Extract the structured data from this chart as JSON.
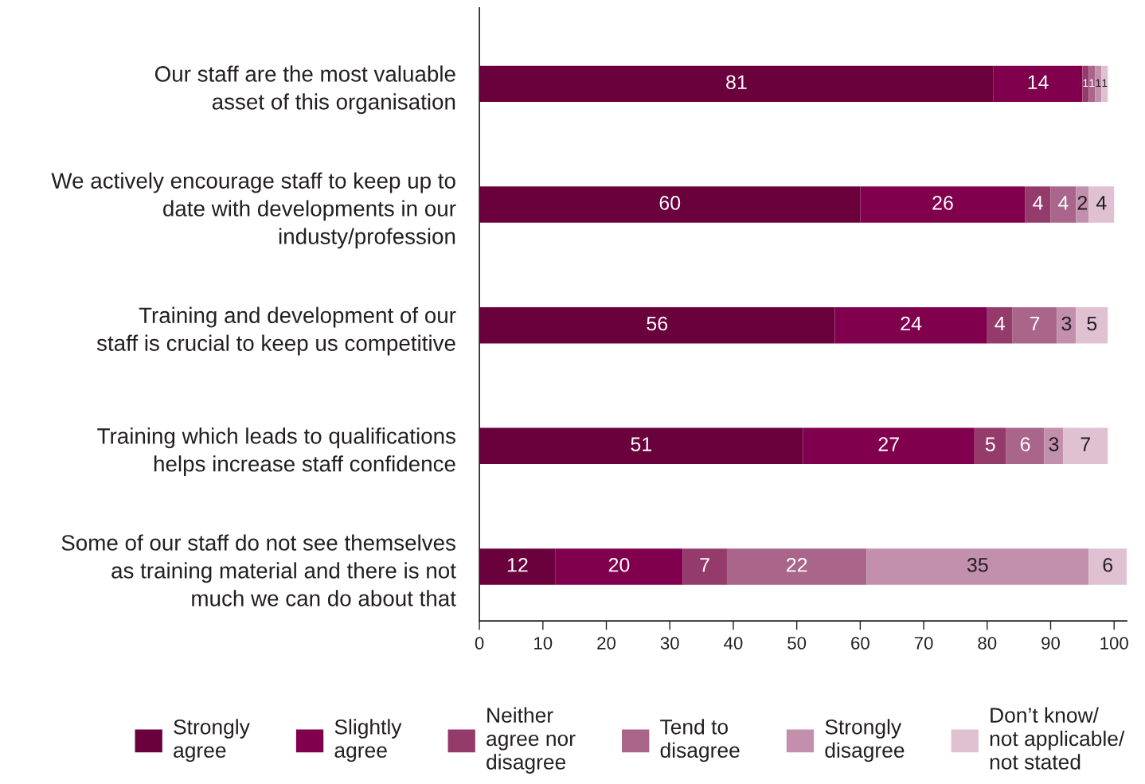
{
  "chart_data": {
    "type": "bar",
    "orientation": "horizontal",
    "stacked": true,
    "categories": [
      "Our staff are the most valuable\nasset of this organisation",
      "We actively encourage staff to keep up to\ndate with developments in our\nindusty/profession",
      "Training and development of our\nstaff is crucial to keep us competitive",
      "Training which leads to qualifications\nhelps increase staff confidence",
      "Some of our staff do not see themselves\nas training material and there is not\nmuch we can do about that"
    ],
    "series": [
      {
        "name": "Strongly\nagree",
        "color": "#6a003c",
        "values": [
          81,
          60,
          56,
          51,
          12
        ]
      },
      {
        "name": "Slightly\nagree",
        "color": "#80004e",
        "values": [
          14,
          26,
          24,
          27,
          20
        ]
      },
      {
        "name": "Neither\nagree nor\ndisagree",
        "color": "#943b6b",
        "values": [
          1,
          4,
          4,
          5,
          7
        ]
      },
      {
        "name": "Tend to\ndisagree",
        "color": "#a9668a",
        "values": [
          1,
          4,
          7,
          6,
          22
        ]
      },
      {
        "name": "Strongly\ndisagree",
        "color": "#c290ad",
        "values": [
          1,
          2,
          3,
          3,
          35
        ]
      },
      {
        "name": "Don’t know/\nnot applicable/\nnot stated",
        "color": "#dfc1d1",
        "values": [
          1,
          4,
          5,
          7,
          6
        ]
      }
    ],
    "xlim": [
      0,
      102
    ],
    "xticks": [
      0,
      10,
      20,
      30,
      40,
      50,
      60,
      70,
      80,
      90,
      100
    ],
    "data_labels": true,
    "legend": "bottom",
    "grid": false
  }
}
